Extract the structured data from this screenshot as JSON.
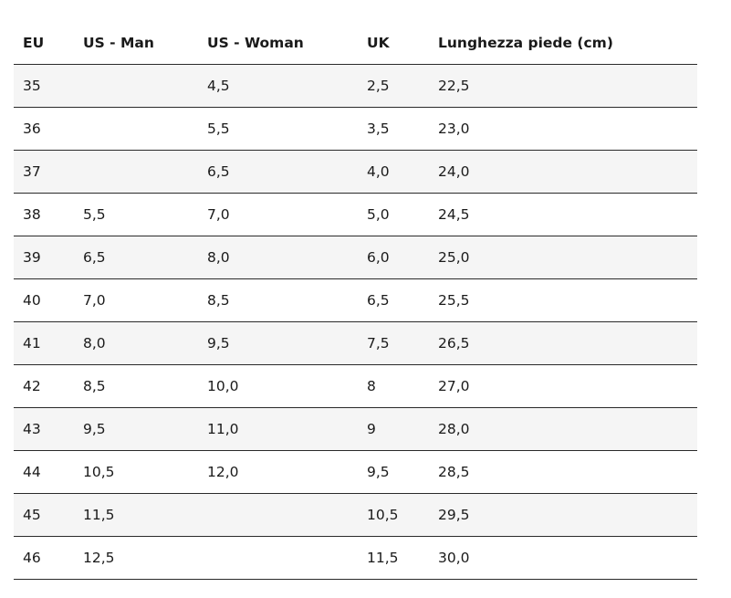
{
  "table": {
    "header": [
      "EU",
      "US - Man",
      "US - Woman",
      "UK",
      "Lunghezza piede (cm)"
    ],
    "rows": [
      [
        "35",
        null,
        "4,5",
        "2,5",
        "22,5"
      ],
      [
        "36",
        null,
        "5,5",
        "3,5",
        "23,0"
      ],
      [
        "37",
        null,
        "6,5",
        "4,0",
        "24,0"
      ],
      [
        "38",
        "5,5",
        "7,0",
        "5,0",
        "24,5"
      ],
      [
        "39",
        "6,5",
        "8,0",
        "6,0",
        "25,0"
      ],
      [
        "40",
        "7,0",
        "8,5",
        "6,5",
        "25,5"
      ],
      [
        "41",
        "8,0",
        "9,5",
        "7,5",
        "26,5"
      ],
      [
        "42",
        "8,5",
        "10,0",
        "8",
        "27,0"
      ],
      [
        "43",
        "9,5",
        "11,0",
        "9",
        "28,0"
      ],
      [
        "44",
        "10,5",
        "12,0",
        "9,5",
        "28,5"
      ],
      [
        "45",
        "11,5",
        null,
        "10,5",
        "29,5"
      ],
      [
        "46",
        "12,5",
        null,
        "11,5",
        "30,0"
      ]
    ]
  }
}
